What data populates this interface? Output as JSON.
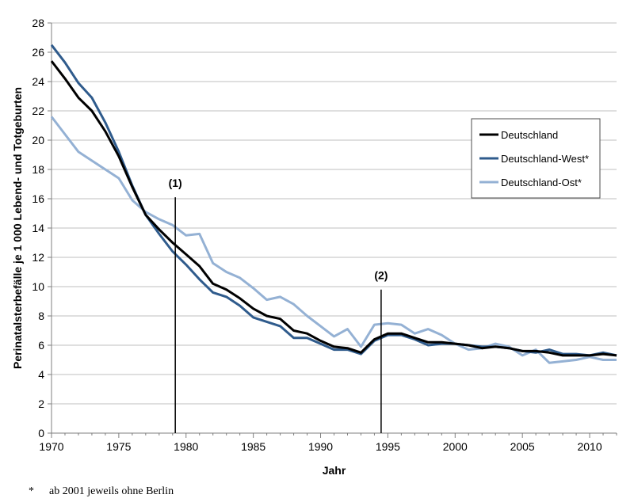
{
  "chart_data": {
    "type": "line",
    "title": "",
    "xlabel": "Jahr",
    "ylabel": "Perinatalsterbefälle je 1 000 Lebend- und Totgeburten",
    "xlim": [
      1970,
      2012
    ],
    "ylim": [
      0,
      28
    ],
    "xticks": [
      "1970",
      "1975",
      "1980",
      "1985",
      "1990",
      "1995",
      "2000",
      "2005",
      "2010"
    ],
    "yticks": [
      "0",
      "2",
      "4",
      "6",
      "8",
      "10",
      "12",
      "14",
      "16",
      "18",
      "20",
      "22",
      "24",
      "26",
      "28"
    ],
    "grid": "horizontal",
    "legend_position": "right",
    "x": [
      1970,
      1971,
      1972,
      1973,
      1974,
      1975,
      1976,
      1977,
      1978,
      1979,
      1980,
      1981,
      1982,
      1983,
      1984,
      1985,
      1986,
      1987,
      1988,
      1989,
      1990,
      1991,
      1992,
      1993,
      1994,
      1995,
      1996,
      1997,
      1998,
      1999,
      2000,
      2001,
      2002,
      2003,
      2004,
      2005,
      2006,
      2007,
      2008,
      2009,
      2010,
      2011,
      2012
    ],
    "series": [
      {
        "name": "Deutschland",
        "color": "#000000",
        "values": [
          25.4,
          24.2,
          22.9,
          22.0,
          20.6,
          18.9,
          16.8,
          14.9,
          13.9,
          13.0,
          12.2,
          11.4,
          10.2,
          9.8,
          9.2,
          8.5,
          8.0,
          7.8,
          7.0,
          6.8,
          6.3,
          5.9,
          5.8,
          5.5,
          6.4,
          6.8,
          6.8,
          6.5,
          6.2,
          6.2,
          6.1,
          6.0,
          5.8,
          5.9,
          5.8,
          5.6,
          5.6,
          5.5,
          5.3,
          5.3,
          5.3,
          5.4,
          5.3
        ]
      },
      {
        "name": "Deutschland-West*",
        "color": "#2f5b8c",
        "values": [
          26.5,
          25.3,
          23.9,
          22.9,
          21.2,
          19.2,
          16.9,
          14.9,
          13.6,
          12.4,
          11.5,
          10.5,
          9.6,
          9.3,
          8.7,
          7.9,
          7.6,
          7.3,
          6.5,
          6.5,
          6.1,
          5.7,
          5.7,
          5.4,
          6.3,
          6.7,
          6.7,
          6.4,
          6.0,
          6.1,
          6.1,
          6.0,
          5.9,
          5.9,
          5.8,
          5.6,
          5.5,
          5.7,
          5.4,
          5.4,
          5.3,
          5.5,
          5.3
        ]
      },
      {
        "name": "Deutschland-Ost*",
        "color": "#94b1d4",
        "values": [
          21.6,
          20.4,
          19.2,
          18.6,
          18.0,
          17.4,
          15.9,
          15.1,
          14.6,
          14.2,
          13.5,
          13.6,
          11.6,
          11.0,
          10.6,
          9.9,
          9.1,
          9.3,
          8.8,
          8.0,
          7.3,
          6.6,
          7.1,
          5.9,
          7.4,
          7.5,
          7.4,
          6.8,
          7.1,
          6.7,
          6.1,
          5.7,
          5.8,
          6.1,
          5.9,
          5.3,
          5.7,
          4.8,
          4.9,
          5.0,
          5.2,
          5.0,
          5.0
        ]
      }
    ],
    "annotations": [
      {
        "label": "(1)",
        "x": 1979.2,
        "y_top": 16.1
      },
      {
        "label": "(2)",
        "x": 1994.5,
        "y_top": 9.8
      }
    ]
  },
  "footnote": {
    "marker": "*",
    "text": "ab 2001 jeweils ohne Berlin"
  }
}
